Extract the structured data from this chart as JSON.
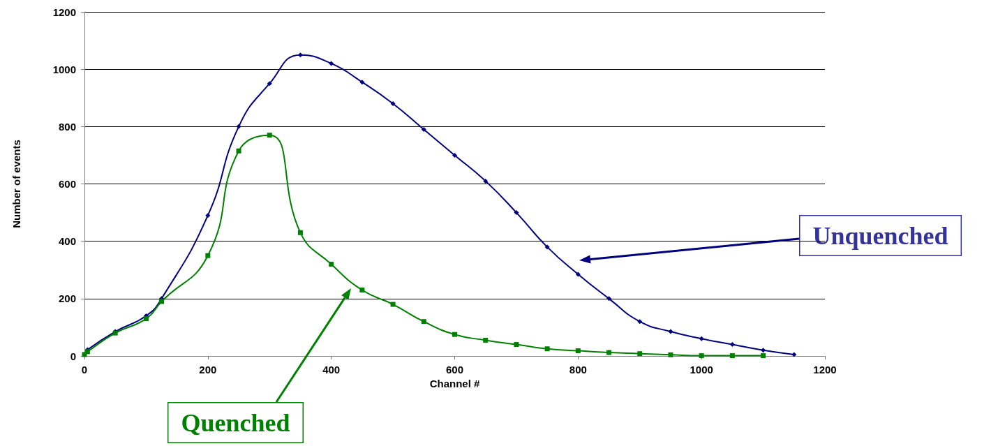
{
  "chart_data": {
    "type": "line",
    "xlabel": "Channel #",
    "ylabel": "Number of events",
    "xlim": [
      0,
      1200
    ],
    "xticks": [
      0,
      200,
      400,
      600,
      800,
      1000,
      1200
    ],
    "ylim": [
      0,
      1200
    ],
    "yticks": [
      0,
      200,
      400,
      600,
      800,
      1000,
      1200
    ],
    "grid": "y",
    "series": [
      {
        "color": "#000080",
        "marker": "diamond",
        "x": [
          5,
          50,
          100,
          125,
          200,
          250,
          300,
          350,
          400,
          450,
          500,
          550,
          600,
          650,
          700,
          750,
          800,
          850,
          900,
          950,
          1000,
          1050,
          1100,
          1150
        ],
        "values": [
          22,
          85,
          140,
          200,
          490,
          800,
          950,
          1050,
          1020,
          955,
          880,
          790,
          700,
          610,
          500,
          380,
          285,
          200,
          120,
          85,
          60,
          40,
          20,
          5
        ]
      },
      {
        "color": "#008000",
        "marker": "square",
        "x": [
          0,
          5,
          50,
          100,
          125,
          200,
          250,
          300,
          350,
          400,
          450,
          500,
          550,
          600,
          650,
          700,
          750,
          800,
          850,
          900,
          950,
          1000,
          1050,
          1100
        ],
        "values": [
          5,
          15,
          80,
          130,
          190,
          350,
          715,
          770,
          430,
          320,
          230,
          180,
          120,
          75,
          55,
          40,
          25,
          18,
          12,
          8,
          4,
          1,
          1,
          1
        ]
      }
    ],
    "annotations": [
      "Unquenched",
      "Quenched"
    ]
  }
}
